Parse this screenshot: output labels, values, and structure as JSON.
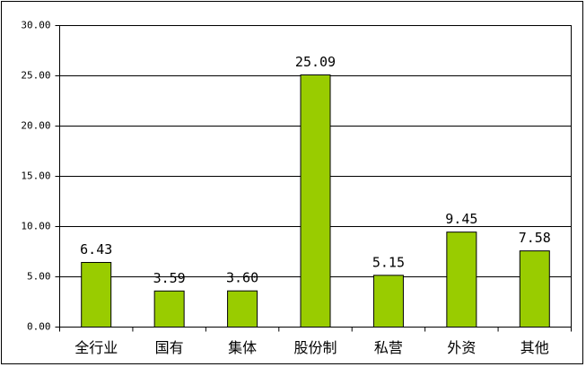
{
  "chart_data": {
    "type": "bar",
    "categories": [
      "全行业",
      "国有",
      "集体",
      "股份制",
      "私营",
      "外资",
      "其他"
    ],
    "values": [
      6.43,
      3.59,
      3.6,
      25.09,
      5.15,
      9.45,
      7.58
    ],
    "value_labels": [
      "6.43",
      "3.59",
      "3.60",
      "25.09",
      "5.15",
      "9.45",
      "7.58"
    ],
    "color": "#99cc00",
    "ylim": [
      0,
      30
    ],
    "yticks": [
      {
        "value": 0,
        "label": "0.00"
      },
      {
        "value": 5,
        "label": "5.00"
      },
      {
        "value": 10,
        "label": "10.00"
      },
      {
        "value": 15,
        "label": "15.00"
      },
      {
        "value": 20,
        "label": "20.00"
      },
      {
        "value": 25,
        "label": "25.00"
      },
      {
        "value": 30,
        "label": "30.00"
      }
    ],
    "grid": true
  }
}
